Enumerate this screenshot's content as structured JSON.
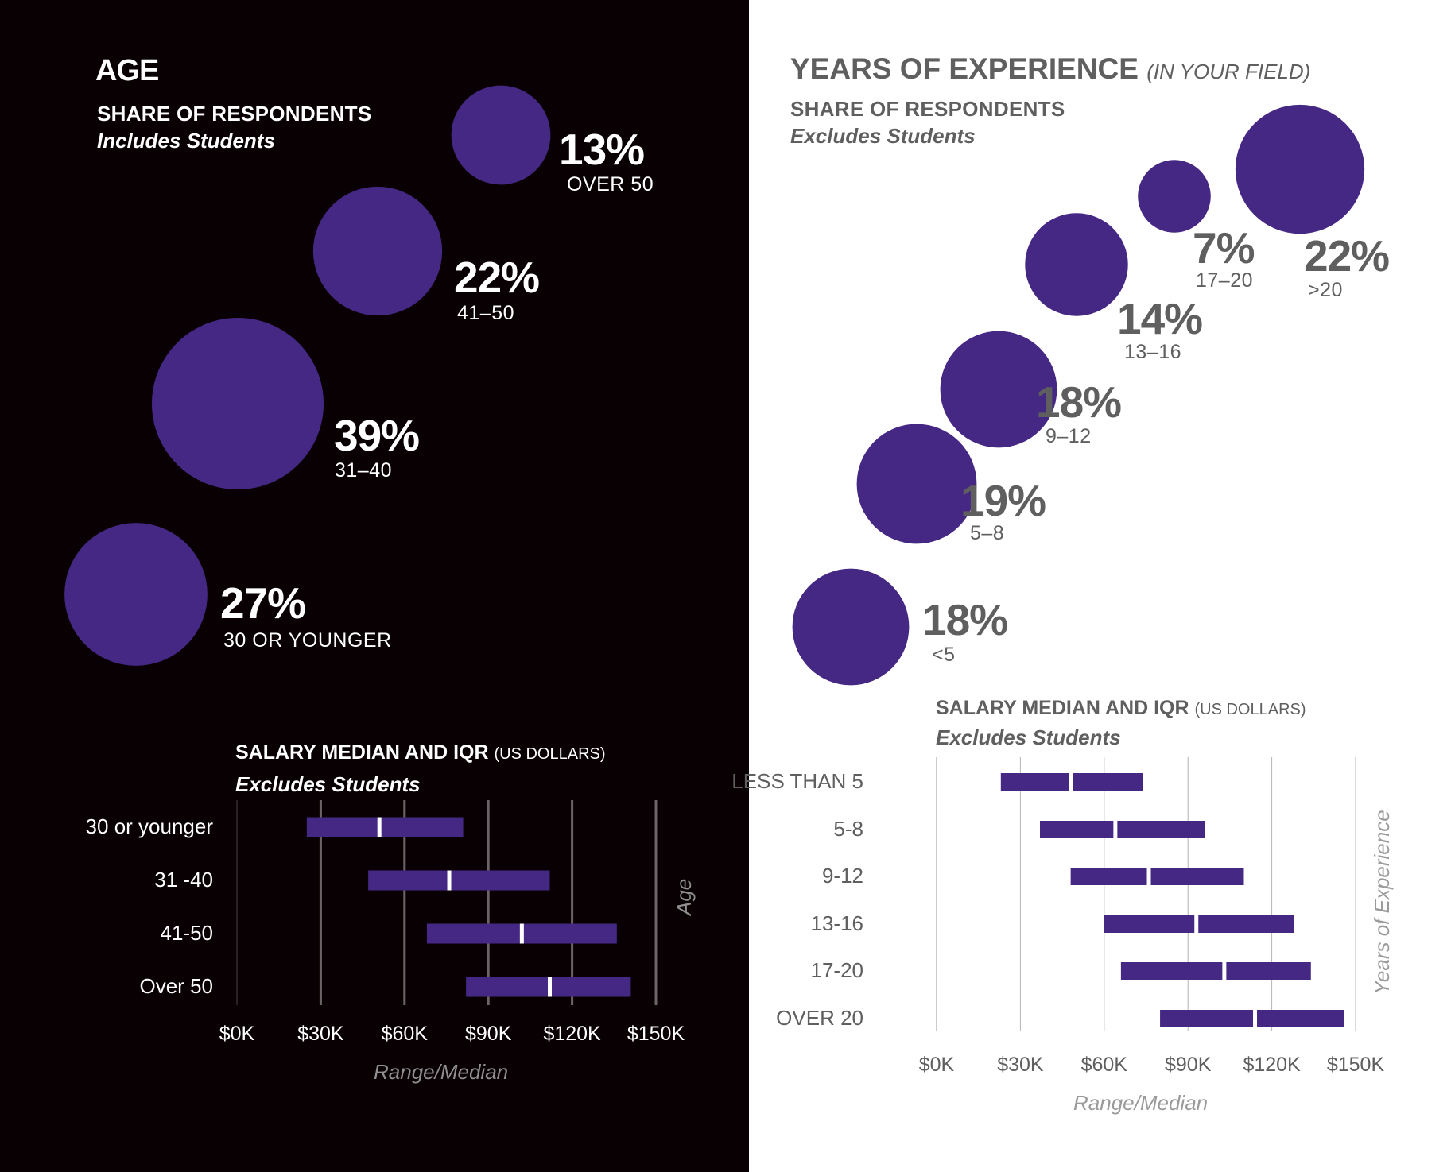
{
  "colors": {
    "bubble": "#452784",
    "bar": "#452784",
    "median_marker": "#ffffff",
    "left_background": "#080003",
    "right_background": "#ffffff",
    "left_grid": "#6e6466",
    "right_grid": "#b4b4b4",
    "right_text": "#5f5f5f",
    "axis_title": "#9a9a9a"
  },
  "age": {
    "title": "AGE",
    "subtitle": "SHARE OF RESPONDENTS",
    "note": "Includes Students",
    "bubbles": [
      {
        "label": "OVER 50",
        "pct": "13%",
        "value": 13
      },
      {
        "label": "41–50",
        "pct": "22%",
        "value": 22
      },
      {
        "label": "31–40",
        "pct": "39%",
        "value": 39
      },
      {
        "label": "30 OR YOUNGER",
        "pct": "27%",
        "value": 27
      }
    ],
    "salary": {
      "title": "SALARY MEDIAN AND IQR",
      "title_note": "(US DOLLARS)",
      "note": "Excludes Students",
      "xlabel": "Range/Median",
      "ylabel": "Age",
      "ticks": [
        "$0K",
        "$30K",
        "$60K",
        "$90K",
        "$120K",
        "$150K"
      ]
    }
  },
  "experience": {
    "title": "YEARS OF EXPERIENCE",
    "title_note": "(IN YOUR FIELD)",
    "subtitle": "SHARE OF RESPONDENTS",
    "note": "Excludes Students",
    "bubbles": [
      {
        "label": ">20",
        "pct": "22%",
        "value": 22
      },
      {
        "label": "17–20",
        "pct": "7%",
        "value": 7
      },
      {
        "label": "13–16",
        "pct": "14%",
        "value": 14
      },
      {
        "label": "9–12",
        "pct": "18%",
        "value": 18
      },
      {
        "label": "5–8",
        "pct": "19%",
        "value": 19
      },
      {
        "label": "<5",
        "pct": "18%",
        "value": 18
      }
    ],
    "salary": {
      "title": "SALARY MEDIAN AND IQR",
      "title_note": "(US DOLLARS)",
      "note": "Excludes Students",
      "xlabel": "Range/Median",
      "ylabel": "Years of Experience",
      "ticks": [
        "$0K",
        "$30K",
        "$60K",
        "$90K",
        "$120K",
        "$150K"
      ]
    }
  },
  "chart_data": [
    {
      "type": "bubble",
      "title": "AGE — Share of Respondents (Includes Students)",
      "categories": [
        "30 or younger",
        "31–40",
        "41–50",
        "Over 50"
      ],
      "values": [
        27,
        39,
        22,
        13
      ],
      "unit": "%"
    },
    {
      "type": "bar",
      "subtype": "range-median",
      "title": "Salary Median and IQR (US Dollars) by Age — Excludes Students",
      "xlabel": "Range/Median",
      "ylabel": "Age",
      "xlim": [
        0,
        150
      ],
      "x_unit": "$K",
      "x_ticks": [
        0,
        30,
        60,
        90,
        120,
        150
      ],
      "grid": true,
      "categories": [
        "30 or younger",
        "31 -40",
        "41-50",
        "Over 50"
      ],
      "q1": [
        25,
        47,
        68,
        82
      ],
      "median": [
        51,
        76,
        102,
        112
      ],
      "q3": [
        81,
        112,
        136,
        141
      ]
    },
    {
      "type": "bubble",
      "title": "Years of Experience (in your field) — Share of Respondents (Excludes Students)",
      "categories": [
        "<5",
        "5–8",
        "9–12",
        "13–16",
        "17–20",
        ">20"
      ],
      "values": [
        18,
        19,
        18,
        14,
        7,
        22
      ],
      "unit": "%"
    },
    {
      "type": "bar",
      "subtype": "range-median",
      "title": "Salary Median and IQR (US Dollars) by Years of Experience — Excludes Students",
      "xlabel": "Range/Median",
      "ylabel": "Years of Experience",
      "xlim": [
        0,
        150
      ],
      "x_unit": "$K",
      "x_ticks": [
        0,
        30,
        60,
        90,
        120,
        150
      ],
      "grid": true,
      "categories": [
        "LESS THAN 5",
        "5-8",
        "9-12",
        "13-16",
        "17-20",
        "OVER 20"
      ],
      "q1": [
        23,
        37,
        48,
        60,
        66,
        80
      ],
      "median": [
        48,
        64,
        76,
        93,
        103,
        114
      ],
      "q3": [
        74,
        96,
        110,
        128,
        134,
        146
      ]
    }
  ]
}
